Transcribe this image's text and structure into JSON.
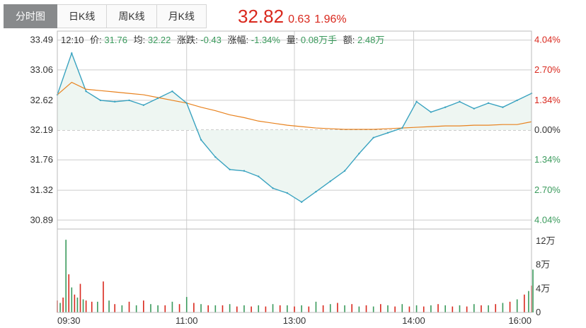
{
  "tabs": [
    {
      "label": "分时图",
      "active": true
    },
    {
      "label": "日K线",
      "active": false
    },
    {
      "label": "周K线",
      "active": false
    },
    {
      "label": "月K线",
      "active": false
    }
  ],
  "quote": {
    "price": "32.82",
    "change": "0.63",
    "percent": "1.96%"
  },
  "info": {
    "time": "12:10",
    "price_label": "价:",
    "price": "31.76",
    "avg_label": "均:",
    "avg": "32.22",
    "change_label": "涨跌:",
    "change": "-0.43",
    "pct_label": "涨幅:",
    "pct": "-1.34%",
    "vol_label": "量:",
    "vol": "0.08万手",
    "amt_label": "额:",
    "amt": "2.48万"
  },
  "colors": {
    "up": "#d9281d",
    "down": "#3a9a5c",
    "price_line": "#3aa3c0",
    "avg_line": "#e8821e",
    "area_fill": "#eef6f2",
    "grid": "#cccccc"
  },
  "chart_data": [
    {
      "type": "line",
      "title": "",
      "prev_close": 32.19,
      "ylim": [
        30.76,
        33.62
      ],
      "y_ticks_left": [
        "33.49",
        "33.06",
        "32.62",
        "32.19",
        "31.76",
        "31.32",
        "30.89"
      ],
      "y_ticks_right": [
        "4.04%",
        "2.70%",
        "1.34%",
        "0.00%",
        "1.34%",
        "2.70%",
        "4.04%"
      ],
      "x_ticks": [
        "09:30",
        "11:00",
        "13:00",
        "14:00",
        "16:00"
      ],
      "time_index": [
        0,
        10,
        20,
        30,
        40,
        50,
        60,
        70,
        80,
        90,
        100,
        110,
        120,
        130,
        140,
        150,
        160,
        170,
        180,
        190,
        200,
        210,
        220,
        230,
        240,
        250,
        260,
        270,
        280,
        290,
        300,
        310,
        320,
        330
      ],
      "series": [
        {
          "values": [
            32.7,
            33.3,
            32.75,
            32.62,
            32.6,
            32.62,
            32.55,
            32.65,
            32.75,
            32.58,
            32.05,
            31.8,
            31.62,
            31.6,
            31.52,
            31.35,
            31.28,
            31.15,
            31.3,
            31.45,
            31.6,
            31.85,
            32.08,
            32.15,
            32.22,
            32.6,
            32.45,
            32.52,
            32.6,
            32.5,
            32.58,
            32.52,
            32.62,
            32.72
          ]
        },
        {
          "values": [
            32.7,
            32.88,
            32.78,
            32.76,
            32.74,
            32.72,
            32.7,
            32.66,
            32.62,
            32.58,
            32.52,
            32.47,
            32.41,
            32.37,
            32.32,
            32.29,
            32.26,
            32.24,
            32.22,
            32.21,
            32.2,
            32.2,
            32.2,
            32.21,
            32.22,
            32.23,
            32.24,
            32.25,
            32.25,
            32.26,
            32.26,
            32.27,
            32.27,
            32.31
          ]
        }
      ]
    },
    {
      "type": "bar",
      "title": "",
      "ylim": [
        0,
        140000
      ],
      "y_ticks": [
        "12万",
        "8万",
        "4万",
        "0"
      ],
      "time_index": [
        0,
        2,
        4,
        6,
        8,
        10,
        12,
        14,
        16,
        18,
        20,
        24,
        28,
        32,
        36,
        40,
        45,
        50,
        55,
        60,
        65,
        70,
        75,
        80,
        85,
        90,
        95,
        100,
        105,
        110,
        115,
        120,
        125,
        130,
        135,
        140,
        145,
        150,
        155,
        160,
        165,
        170,
        175,
        180,
        185,
        190,
        195,
        200,
        205,
        210,
        215,
        220,
        225,
        230,
        235,
        240,
        245,
        250,
        255,
        260,
        265,
        270,
        275,
        280,
        285,
        290,
        295,
        300,
        305,
        310,
        315,
        320,
        325,
        328,
        330,
        331
      ],
      "values": [
        20000,
        16000,
        25000,
        122000,
        64000,
        42000,
        30000,
        25000,
        48000,
        22000,
        20000,
        18000,
        18000,
        52000,
        20000,
        14000,
        12000,
        18000,
        12000,
        20000,
        14000,
        12000,
        12000,
        18000,
        14000,
        26000,
        16000,
        14000,
        12000,
        12000,
        12000,
        14000,
        10000,
        12000,
        10000,
        12000,
        10000,
        14000,
        12000,
        12000,
        10000,
        12000,
        10000,
        18000,
        12000,
        14000,
        16000,
        12000,
        14000,
        10000,
        12000,
        10000,
        14000,
        12000,
        10000,
        14000,
        10000,
        12000,
        10000,
        12000,
        14000,
        12000,
        10000,
        12000,
        10000,
        14000,
        12000,
        12000,
        14000,
        16000,
        18000,
        22000,
        30000,
        36000,
        45000,
        72000
      ],
      "up": [
        true,
        false,
        true,
        false,
        true,
        false,
        true,
        false,
        true,
        false,
        true,
        true,
        false,
        true,
        false,
        true,
        false,
        true,
        false,
        true,
        false,
        false,
        true,
        false,
        true,
        false,
        true,
        false,
        true,
        false,
        true,
        false,
        true,
        false,
        true,
        false,
        true,
        false,
        true,
        false,
        true,
        false,
        true,
        false,
        true,
        false,
        true,
        false,
        true,
        false,
        true,
        false,
        true,
        false,
        true,
        false,
        true,
        false,
        true,
        false,
        true,
        false,
        true,
        false,
        true,
        false,
        true,
        false,
        true,
        false,
        true,
        false,
        true,
        false,
        true,
        false
      ]
    }
  ]
}
